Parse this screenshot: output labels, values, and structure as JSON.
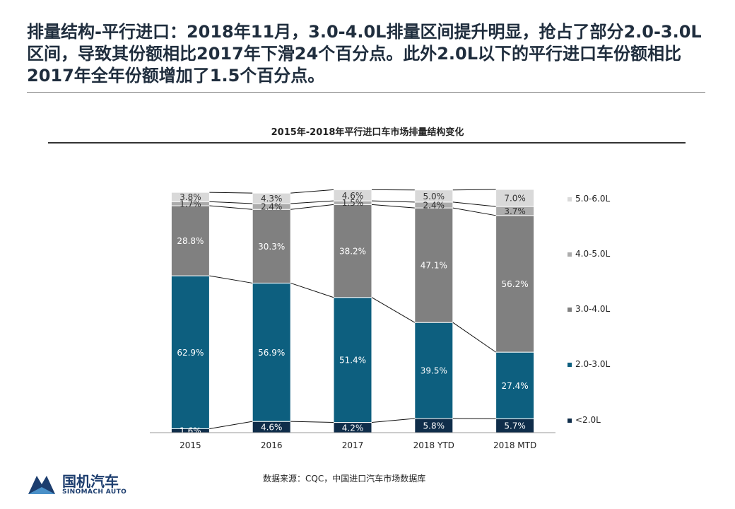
{
  "page": {
    "headline": "排量结构-平行进口：2018年11月，3.0-4.0L排量区间提升明显，抢占了部分2.0-3.0L区间，导致其份额相比2017年下滑24个百分点。此外2.0L以下的平行进口车份额相比2017年全年份额增加了1.5个百分点。",
    "source": "数据来源：CQC，中国进口汽车市场数据库",
    "logo": {
      "cn": "国机汽车",
      "en": "SINOMACH AUTO"
    }
  },
  "chart_data": {
    "type": "bar",
    "stacked": true,
    "normalized_percent": true,
    "title": "2015年-2018年平行进口车市场排量结构变化",
    "categories": [
      "2015",
      "2016",
      "2017",
      "2018 YTD",
      "2018 MTD"
    ],
    "series": [
      {
        "name": "<2.0L",
        "color": "#0f2d4a",
        "values": [
          1.6,
          4.6,
          4.2,
          5.8,
          5.7
        ],
        "labels": [
          "1.6%",
          "4.6%",
          "4.2%",
          "5.8%",
          "5.7%"
        ]
      },
      {
        "name": "2.0-3.0L",
        "color": "#0d5f7f",
        "values": [
          62.9,
          56.9,
          51.4,
          39.5,
          27.4
        ],
        "labels": [
          "62.9%",
          "56.9%",
          "51.4%",
          "39.5%",
          "27.4%"
        ]
      },
      {
        "name": "3.0-4.0L",
        "color": "#808080",
        "values": [
          28.8,
          30.3,
          38.2,
          47.1,
          56.2
        ],
        "labels": [
          "28.8%",
          "30.3%",
          "38.2%",
          "47.1%",
          "56.2%"
        ]
      },
      {
        "name": "4.0-5.0L",
        "color": "#acacac",
        "values": [
          1.7,
          2.4,
          1.5,
          2.4,
          3.7
        ],
        "labels": [
          "1.7%",
          "2.4%",
          "1.5%",
          "2.4%",
          "3.7%"
        ]
      },
      {
        "name": "5.0-6.0L",
        "color": "#d9d9d9",
        "values": [
          3.8,
          4.3,
          4.6,
          5.0,
          7.0
        ],
        "labels": [
          "3.8%",
          "4.3%",
          "4.6%",
          "5.0%",
          "7.0%"
        ]
      }
    ],
    "legend_order": [
      "5.0-6.0L",
      "4.0-5.0L",
      "3.0-4.0L",
      "2.0-3.0L",
      "<2.0L"
    ],
    "legend_position": "right",
    "connector_lines": true,
    "grid": false,
    "ylim": [
      0,
      100
    ],
    "xlabel": "",
    "ylabel": ""
  }
}
